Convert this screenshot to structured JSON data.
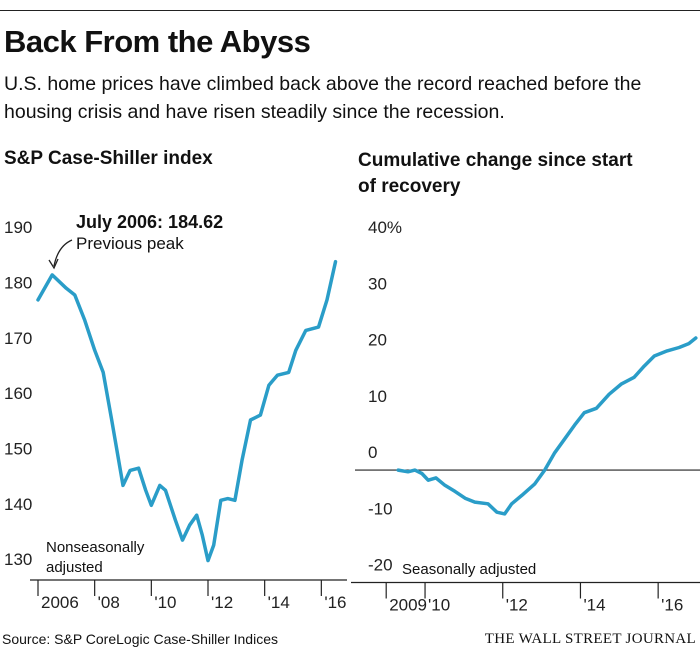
{
  "header": {
    "title": "Back From the Abyss",
    "subtitle": "U.S. home prices have climbed back above the record reached before the housing crisis and have risen steadily since the recession."
  },
  "chart_data": [
    {
      "type": "line",
      "title": "S&P Case-Shiller index",
      "annotations": [
        "July 2006: 184.62",
        "Previous peak",
        "Nonseasonally adjusted"
      ],
      "x": [
        2006,
        2006.5,
        2007,
        2007.3,
        2007.65,
        2008,
        2008.3,
        2008.6,
        2009,
        2009.25,
        2009.55,
        2009.8,
        2010,
        2010.3,
        2010.5,
        2010.85,
        2011.1,
        2011.35,
        2011.6,
        2011.8,
        2012,
        2012.2,
        2012.45,
        2012.7,
        2012.95,
        2013.2,
        2013.5,
        2013.85,
        2014.15,
        2014.45,
        2014.85,
        2015.1,
        2015.45,
        2015.9,
        2016.2,
        2016.5
      ],
      "series": [
        {
          "color": "#2a9dc8",
          "values": [
            180.1,
            184.62,
            182.2,
            181,
            176.4,
            171,
            167,
            158.4,
            146.6,
            149.3,
            149.7,
            145.7,
            143,
            146.6,
            145.7,
            140.3,
            136.7,
            139.4,
            141.2,
            137.6,
            133,
            135.8,
            143.9,
            144.2,
            143.9,
            151.1,
            158.4,
            159.3,
            164.7,
            166.5,
            167,
            171,
            174.6,
            175.2,
            180.1,
            187
          ]
        }
      ],
      "xlim": [
        2006,
        2016.8
      ],
      "xticks": [
        2006,
        {
          "value": 2008,
          "label": "'08"
        },
        {
          "value": 2010,
          "label": "'10"
        },
        {
          "value": 2012,
          "label": "'12"
        },
        {
          "value": 2014,
          "label": "'14"
        },
        {
          "value": 2016,
          "label": "'16"
        }
      ],
      "ylim": [
        129.5,
        194
      ],
      "yticks": [
        130,
        140,
        150,
        160,
        170,
        180,
        190
      ]
    },
    {
      "type": "line",
      "title": "Cumulative change since start of recovery",
      "annotations": [
        "Seasonally adjusted"
      ],
      "x": [
        2009.31,
        2009.56,
        2009.74,
        2009.92,
        2010.08,
        2010.28,
        2010.51,
        2010.77,
        2011.03,
        2011.28,
        2011.62,
        2011.85,
        2012.05,
        2012.23,
        2012.49,
        2012.82,
        2013.08,
        2013.33,
        2013.59,
        2013.85,
        2014.1,
        2014.41,
        2014.74,
        2015.05,
        2015.38,
        2015.64,
        2015.9,
        2016.23,
        2016.54,
        2016.79,
        2016.97
      ],
      "series": [
        {
          "color": "#2a9dc8",
          "values": [
            0,
            -0.3,
            0,
            -0.6,
            -1.8,
            -1.4,
            -2.7,
            -3.8,
            -5,
            -5.7,
            -6,
            -7.5,
            -7.8,
            -6,
            -4.5,
            -2.5,
            0,
            3,
            5.5,
            8,
            10.2,
            11,
            13.5,
            15.3,
            16.5,
            18.5,
            20.3,
            21.2,
            21.8,
            22.5,
            23.5
          ]
        }
      ],
      "xlim": [
        2008.3,
        2017
      ],
      "xticks": [
        2009,
        {
          "value": 2010,
          "label": "'10"
        },
        {
          "value": 2012,
          "label": "'12"
        },
        {
          "value": 2014,
          "label": "'14"
        },
        {
          "value": 2016,
          "label": "'16"
        }
      ],
      "ylim": [
        -20,
        42
      ],
      "yticks": [
        -20,
        -10,
        0,
        10,
        20,
        30,
        {
          "value": 40,
          "label": "40%"
        }
      ]
    }
  ],
  "footer": {
    "source": "Source: S&P CoreLogic Case-Shiller Indices",
    "publisher": "THE WALL STREET JOURNAL"
  }
}
